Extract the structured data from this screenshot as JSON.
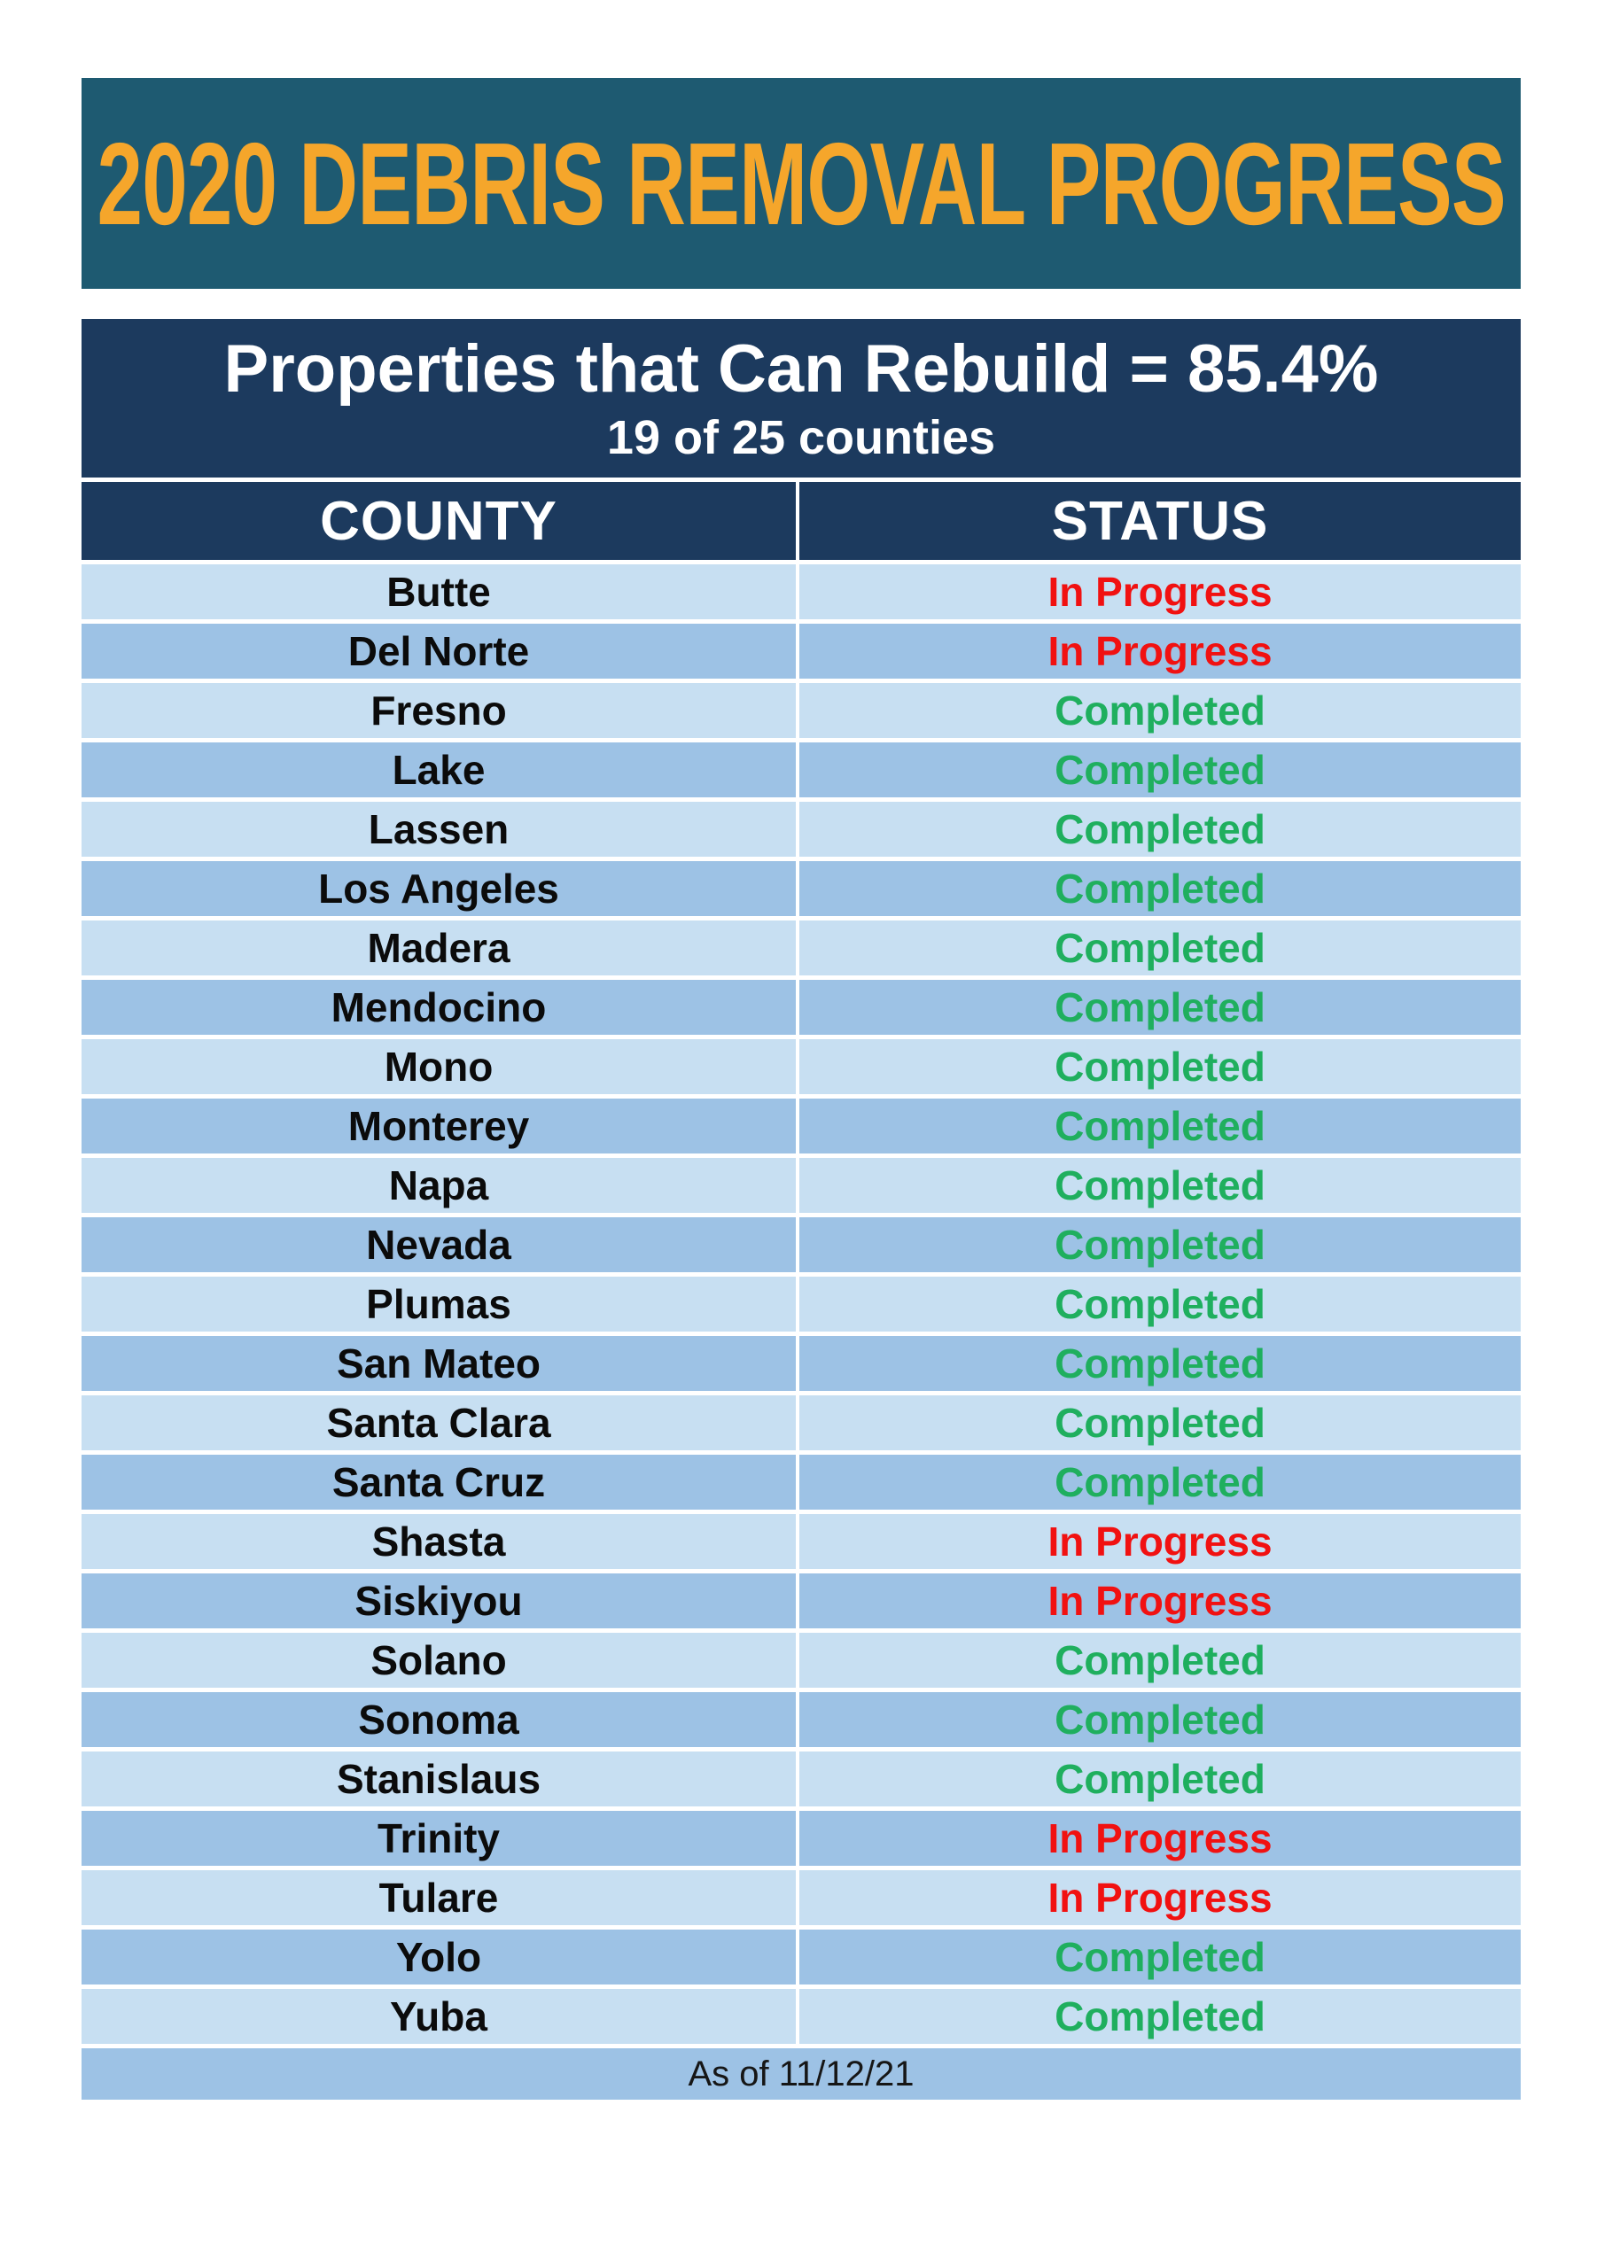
{
  "banner": {
    "title": "2020 DEBRIS REMOVAL PROGRESS"
  },
  "summary": {
    "headline": "Properties that Can Rebuild = 85.4%",
    "subheadline": "19 of 25 counties"
  },
  "table": {
    "columns": [
      "COUNTY",
      "STATUS"
    ],
    "rows": [
      {
        "county": "Butte",
        "status": "In Progress"
      },
      {
        "county": "Del Norte",
        "status": "In Progress"
      },
      {
        "county": "Fresno",
        "status": "Completed"
      },
      {
        "county": "Lake",
        "status": "Completed"
      },
      {
        "county": "Lassen",
        "status": "Completed"
      },
      {
        "county": "Los Angeles",
        "status": "Completed"
      },
      {
        "county": "Madera",
        "status": "Completed"
      },
      {
        "county": "Mendocino",
        "status": "Completed"
      },
      {
        "county": "Mono",
        "status": "Completed"
      },
      {
        "county": "Monterey",
        "status": "Completed"
      },
      {
        "county": "Napa",
        "status": "Completed"
      },
      {
        "county": "Nevada",
        "status": "Completed"
      },
      {
        "county": "Plumas",
        "status": "Completed"
      },
      {
        "county": "San Mateo",
        "status": "Completed"
      },
      {
        "county": "Santa Clara",
        "status": "Completed"
      },
      {
        "county": "Santa Cruz",
        "status": "Completed"
      },
      {
        "county": "Shasta",
        "status": "In Progress"
      },
      {
        "county": "Siskiyou",
        "status": "In Progress"
      },
      {
        "county": "Solano",
        "status": "Completed"
      },
      {
        "county": "Sonoma",
        "status": "Completed"
      },
      {
        "county": "Stanislaus",
        "status": "Completed"
      },
      {
        "county": "Trinity",
        "status": "In Progress"
      },
      {
        "county": "Tulare",
        "status": "In Progress"
      },
      {
        "county": "Yolo",
        "status": "Completed"
      },
      {
        "county": "Yuba",
        "status": "Completed"
      }
    ],
    "footnote": "As of 11/12/21"
  },
  "status_colors": {
    "Completed": "#1FAF5E",
    "In Progress": "#F11111"
  },
  "colors": {
    "page_bg": "#FFFFFF",
    "banner_bg": "#1E5A71",
    "accent_orange": "#F5A62B",
    "navy": "#1C3A5E",
    "row_light": "#C7DFF2",
    "row_dark": "#9DC2E5",
    "header_text": "#FFFFFF",
    "county_text": "#0B0B0B",
    "footnote_text": "#161616"
  }
}
